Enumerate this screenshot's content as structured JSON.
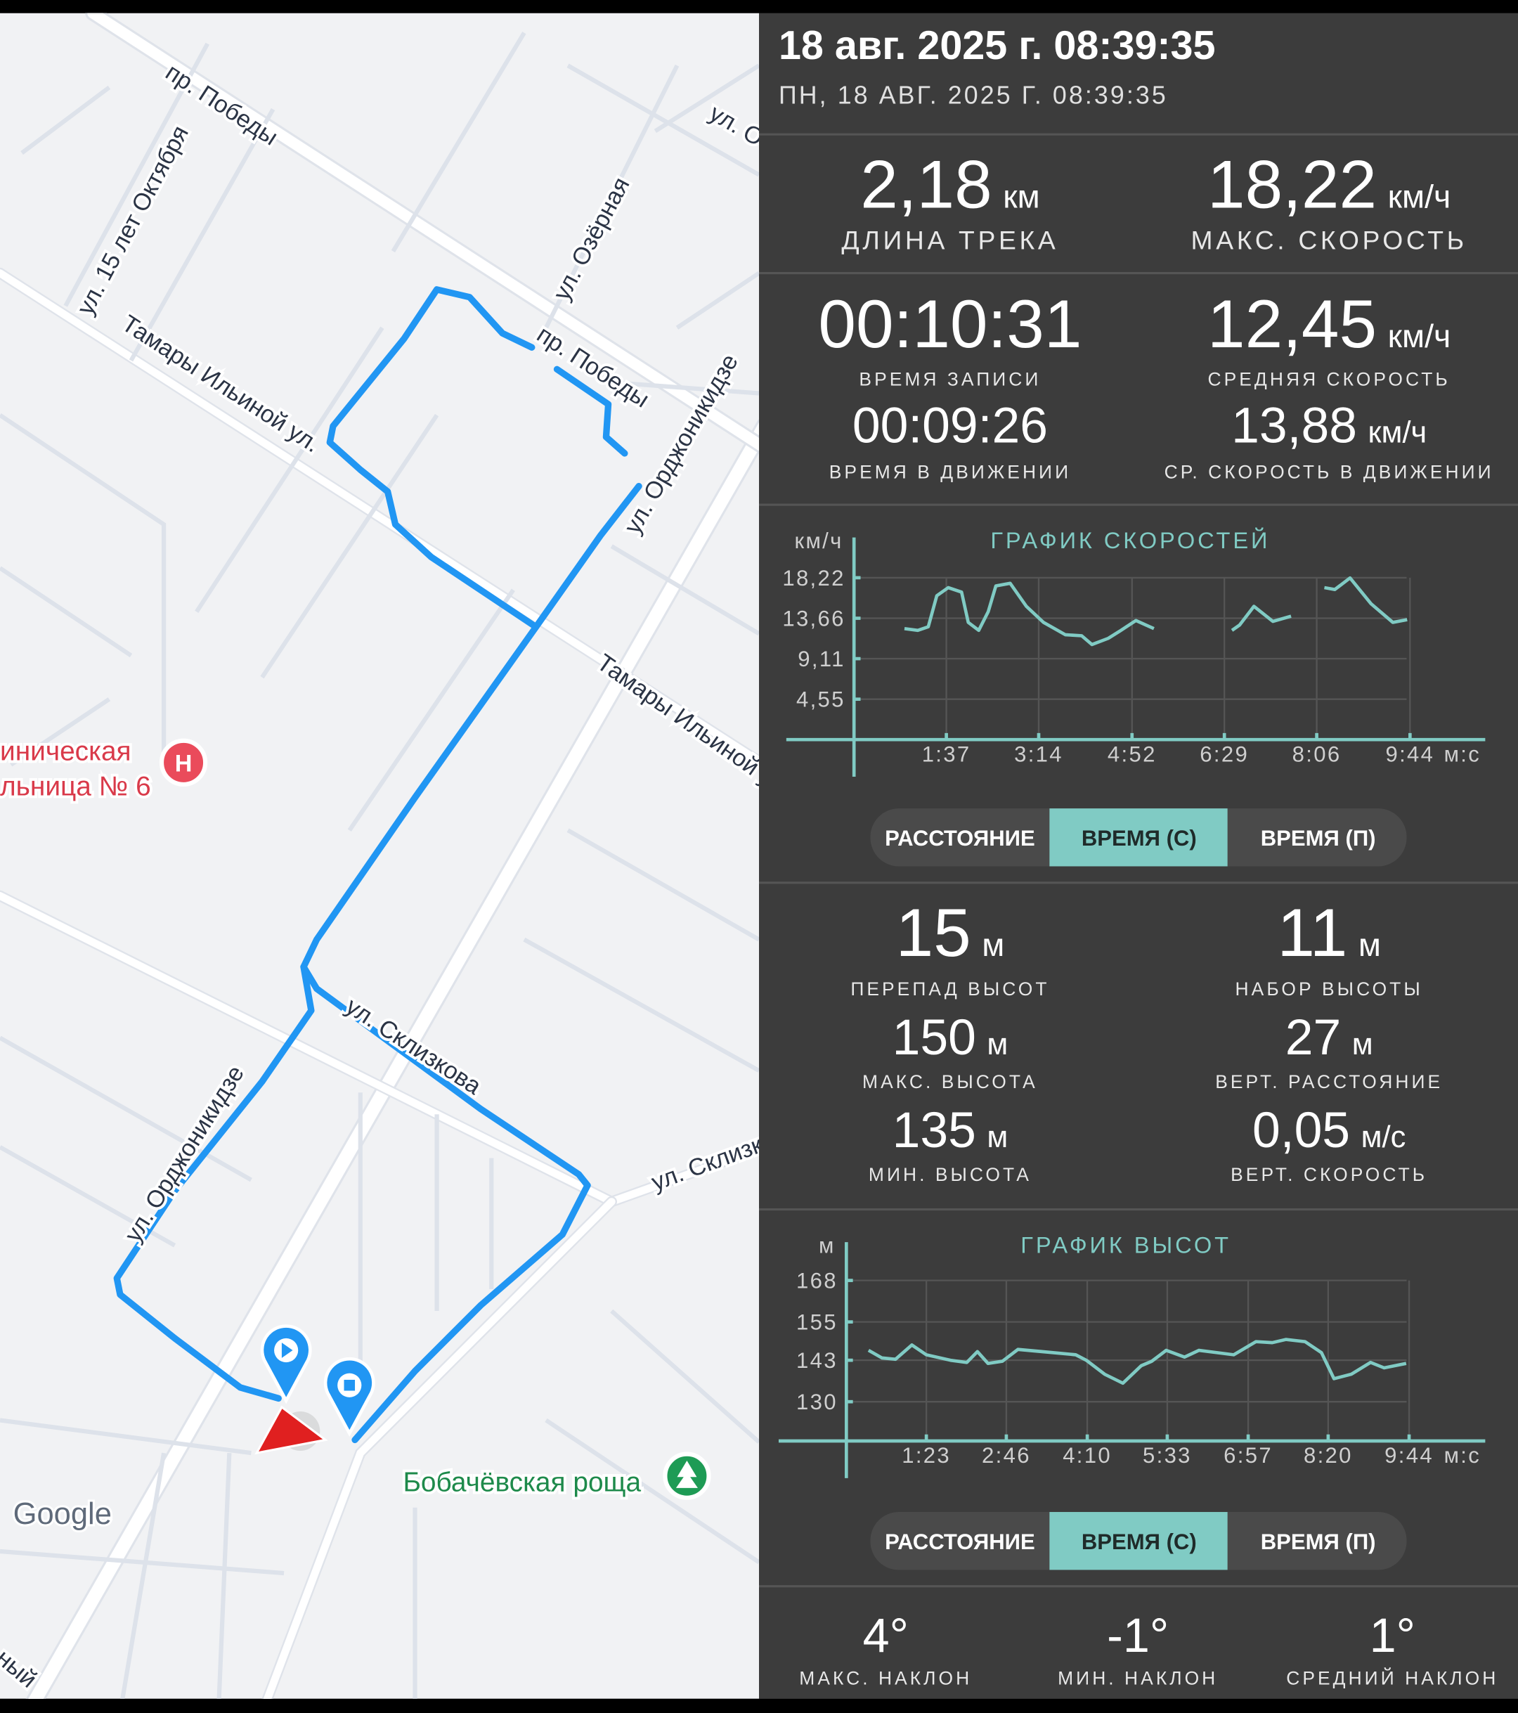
{
  "map": {
    "street_labels": [
      "пр. Победы",
      "ул. 15 лет Октября",
      "ул. Озёрная",
      "ул. О",
      "Тамары Ильиной ул.",
      "пр. Победы",
      "ул. Орджоникидзе",
      "Тамары Ильиной у",
      "ул. Склизкова",
      "ул. Склизк",
      "ул. Орджоникидзе",
      "ный"
    ],
    "poi": [
      "иническая",
      "льница № 6"
    ],
    "park": "Бобачёвская роща",
    "logo": "Google"
  },
  "header": {
    "title": "18 авг. 2025 г. 08:39:35",
    "subtitle": "ПН, 18 АВГ. 2025 Г. 08:39:35"
  },
  "stats": [
    {
      "value": "2,18",
      "unit": "км",
      "label": "ДЛИНА ТРЕКА"
    },
    {
      "value": "18,22",
      "unit": "км/ч",
      "label": "МАКС. СКОРОСТЬ"
    },
    {
      "value": "00:10:31",
      "label": "ВРЕМЯ ЗАПИСИ"
    },
    {
      "value": "12,45",
      "unit": "км/ч",
      "label": "СРЕДНЯЯ СКОРОСТЬ"
    },
    {
      "value": "00:09:26",
      "label": "ВРЕМЯ В ДВИЖЕНИИ"
    },
    {
      "value": "13,88",
      "unit": "км/ч",
      "label": "СР. СКОРОСТЬ В ДВИЖЕНИИ"
    },
    {
      "value": "15",
      "unit": "м",
      "label": "ПЕРЕПАД ВЫСОТ"
    },
    {
      "value": "11",
      "unit": "м",
      "label": "НАБОР ВЫСОТЫ"
    },
    {
      "value": "150",
      "unit": "м",
      "label": "МАКС. ВЫСОТА"
    },
    {
      "value": "27",
      "unit": "м",
      "label": "ВЕРТ. РАССТОЯНИЕ"
    },
    {
      "value": "135",
      "unit": "м",
      "label": "МИН. ВЫСОТА"
    },
    {
      "value": "0,05",
      "unit": "м/с",
      "label": "ВЕРТ. СКОРОСТЬ"
    },
    {
      "value": "4°",
      "label": "МАКС. НАКЛОН"
    },
    {
      "value": "-1°",
      "label": "МИН. НАКЛОН"
    },
    {
      "value": "1°",
      "label": "СРЕДНИЙ НАКЛОН"
    }
  ],
  "speed_chart": {
    "type": "line",
    "title": "ГРАФИК СКОРОСТЕЙ",
    "y_label": "км/ч",
    "x_label": "м:с",
    "color": "#80cbc4",
    "xlim": [
      0,
      663
    ],
    "ylim": [
      0,
      22.75
    ],
    "xticks": [
      {
        "value": 97,
        "label": "1:37"
      },
      {
        "value": 194,
        "label": "3:14"
      },
      {
        "value": 292,
        "label": "4:52"
      },
      {
        "value": 389,
        "label": "6:29"
      },
      {
        "value": 486,
        "label": "8:06"
      },
      {
        "value": 584,
        "label": "9:44"
      }
    ],
    "yticks": [
      {
        "value": 4.55,
        "label": "4,55"
      },
      {
        "value": 9.11,
        "label": "9,11"
      },
      {
        "value": 13.66,
        "label": "13,66"
      },
      {
        "value": 18.22,
        "label": "18,22"
      }
    ],
    "grid": true,
    "x": [
      53,
      67,
      78,
      87,
      99,
      113,
      120,
      131,
      141,
      149,
      164,
      181,
      199,
      222,
      239,
      250,
      267,
      279,
      296,
      315,
      356,
      397,
      405,
      420,
      440,
      459,
      478,
      494,
      505,
      521,
      543,
      566,
      581
    ],
    "values": [
      12.5,
      12.3,
      12.7,
      16.2,
      17.1,
      16.6,
      13.2,
      12.3,
      14.4,
      17.3,
      17.6,
      15.0,
      13.2,
      11.8,
      11.7,
      10.7,
      11.4,
      12.2,
      13.4,
      12.5,
      null,
      12.3,
      12.9,
      15.0,
      13.3,
      13.9,
      null,
      17.1,
      16.9,
      18.2,
      15.3,
      13.2,
      13.5
    ]
  },
  "speed_tabs": [
    "РАССТОЯНИЕ",
    "ВРЕМЯ (С)",
    "ВРЕМЯ (П)"
  ],
  "altitude_chart": {
    "type": "line",
    "title": "ГРАФИК ВЫСОТ",
    "y_label": "м",
    "x_label": "м:с",
    "color": "#80cbc4",
    "xlim": [
      0,
      663
    ],
    "ylim": [
      117.7,
      180
    ],
    "xticks": [
      {
        "value": 83,
        "label": "1:23"
      },
      {
        "value": 166,
        "label": "2:46"
      },
      {
        "value": 250,
        "label": "4:10"
      },
      {
        "value": 333,
        "label": "5:33"
      },
      {
        "value": 417,
        "label": "6:57"
      },
      {
        "value": 500,
        "label": "8:20"
      },
      {
        "value": 584,
        "label": "9:44"
      }
    ],
    "yticks": [
      130,
      143,
      155,
      168
    ],
    "grid": true,
    "x": [
      23,
      37,
      51,
      68,
      83,
      108,
      125,
      136,
      147,
      162,
      178,
      203,
      238,
      249,
      268,
      287,
      306,
      317,
      332,
      351,
      366,
      402,
      425,
      442,
      456,
      476,
      493,
      506,
      524,
      544,
      558,
      581
    ],
    "values": [
      146.1,
      143.7,
      143.3,
      147.8,
      144.7,
      143.0,
      142.3,
      145.7,
      142.0,
      142.7,
      146.4,
      145.7,
      144.7,
      143.0,
      138.6,
      135.8,
      141.3,
      142.7,
      146.1,
      144.0,
      146.1,
      144.7,
      148.8,
      148.5,
      149.5,
      148.8,
      145.4,
      137.2,
      138.6,
      142.3,
      140.6,
      142.0
    ]
  },
  "altitude_tabs": [
    "РАССТОЯНИЕ",
    "ВРЕМЯ (С)",
    "ВРЕМЯ (П)"
  ]
}
